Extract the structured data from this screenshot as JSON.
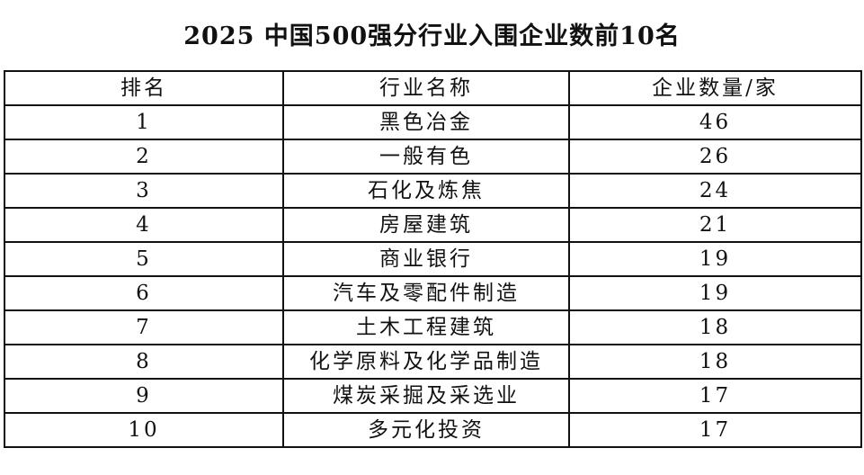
{
  "title": "2025 中国500强分行业入围企业数前10名",
  "headers": [
    "排名",
    "行业名称",
    "企业数量/家"
  ],
  "rows": [
    [
      "1",
      "黑色冶金",
      "46"
    ],
    [
      "2",
      "一般有色",
      "26"
    ],
    [
      "3",
      "石化及炼焦",
      "24"
    ],
    [
      "4",
      "房屋建筑",
      "21"
    ],
    [
      "5",
      "商业银行",
      "19"
    ],
    [
      "6",
      "汽车及零配件制造",
      "19"
    ],
    [
      "7",
      "土木工程建筑",
      "18"
    ],
    [
      "8",
      "化学原料及化学品制造",
      "18"
    ],
    [
      "9",
      "煤炭采掘及采选业",
      "17"
    ],
    [
      "10",
      "多元化投资",
      "17"
    ]
  ]
}
